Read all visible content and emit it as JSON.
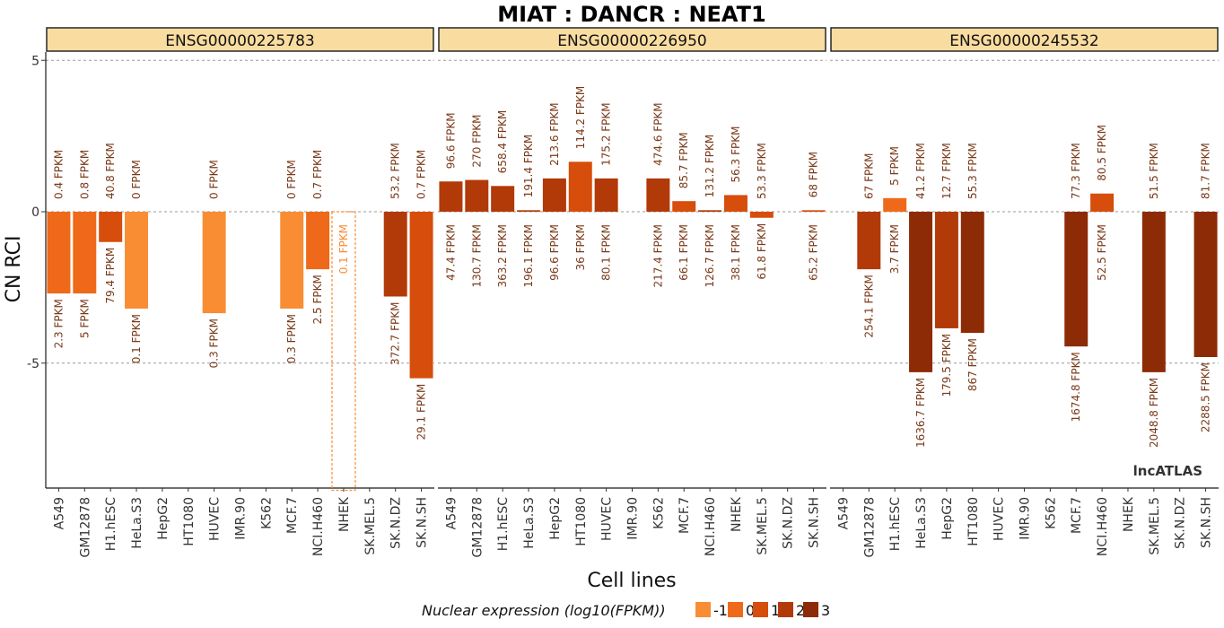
{
  "chart_data": {
    "type": "bar",
    "title": "MIAT : DANCR : NEAT1",
    "xlabel": "Cell lines",
    "ylabel": "CN RCI",
    "ylim": [
      -9.2,
      6
    ],
    "yticks": [
      5,
      0,
      -5
    ],
    "ytick_labels": [
      "5",
      "0",
      "-5"
    ],
    "categories": [
      "A549",
      "GM12878",
      "H1.hESC",
      "HeLa.S3",
      "HepG2",
      "HT1080",
      "HUVEC",
      "IMR.90",
      "K562",
      "MCF.7",
      "NCI.H460",
      "NHEK",
      "SK.MEL.5",
      "SK.N.DZ",
      "SK.N.SH"
    ],
    "grid": "dashed at 5, 0, -5",
    "legend": {
      "title": "Nuclear expression (log10(FPKM))",
      "placement": "bottom",
      "entries": [
        {
          "label": "-1",
          "color": "#f98d34"
        },
        {
          "label": "0",
          "color": "#ee6a1a"
        },
        {
          "label": "1",
          "color": "#d64d0c"
        },
        {
          "label": "2",
          "color": "#b23a08"
        },
        {
          "label": "3",
          "color": "#8c2b06"
        }
      ]
    },
    "watermark": "lncATLAS",
    "panels": [
      {
        "name": "ENSG00000225783",
        "bars": [
          {
            "cell": "A549",
            "value": -2.7,
            "top_label": "0.4 FPKM",
            "bottom_label": "2.3 FPKM",
            "color": "#ee6a1a"
          },
          {
            "cell": "GM12878",
            "value": -2.7,
            "top_label": "0.8 FPKM",
            "bottom_label": "5 FPKM",
            "color": "#ee6a1a"
          },
          {
            "cell": "H1.hESC",
            "value": -1.0,
            "top_label": "40.8 FPKM",
            "bottom_label": "79.4 FPKM",
            "color": "#d64d0c"
          },
          {
            "cell": "HeLa.S3",
            "value": -3.2,
            "top_label": "0 FPKM",
            "bottom_label": "0.1 FPKM",
            "color": "#f98d34"
          },
          {
            "cell": "HUVEC",
            "value": -3.35,
            "top_label": "0 FPKM",
            "bottom_label": "0.3 FPKM",
            "color": "#f98d34"
          },
          {
            "cell": "MCF.7",
            "value": -3.2,
            "top_label": "0 FPKM",
            "bottom_label": "0.3 FPKM",
            "color": "#f98d34"
          },
          {
            "cell": "NCI.H460",
            "value": -1.9,
            "top_label": "0.7 FPKM",
            "bottom_label": "2.5 FPKM",
            "color": "#ee6a1a"
          },
          {
            "cell": "NHEK",
            "value": -9.2,
            "top_label": "",
            "bottom_label": "0.1 FPKM",
            "color": "#f98d34",
            "outline": true
          },
          {
            "cell": "SK.N.DZ",
            "value": -2.8,
            "top_label": "53.2 FPKM",
            "bottom_label": "372.7 FPKM",
            "color": "#b23a08"
          },
          {
            "cell": "SK.N.SH",
            "value": -5.5,
            "top_label": "0.7 FPKM",
            "bottom_label": "29.1 FPKM",
            "color": "#d64d0c"
          }
        ]
      },
      {
        "name": "ENSG00000226950",
        "bars": [
          {
            "cell": "A549",
            "value": 1.0,
            "top_label": "96.6 FPKM",
            "bottom_label": "47.4 FPKM",
            "color": "#b23a08"
          },
          {
            "cell": "GM12878",
            "value": 1.05,
            "top_label": "270 FPKM",
            "bottom_label": "130.7 FPKM",
            "color": "#b23a08"
          },
          {
            "cell": "H1.hESC",
            "value": 0.85,
            "top_label": "658.4 FPKM",
            "bottom_label": "363.2 FPKM",
            "color": "#b23a08"
          },
          {
            "cell": "HeLa.S3",
            "value": 0.05,
            "top_label": "191.4 FPKM",
            "bottom_label": "196.1 FPKM",
            "color": "#b23a08"
          },
          {
            "cell": "HepG2",
            "value": 1.1,
            "top_label": "213.6 FPKM",
            "bottom_label": "96.6 FPKM",
            "color": "#b23a08"
          },
          {
            "cell": "HT1080",
            "value": 1.65,
            "top_label": "114.2 FPKM",
            "bottom_label": "36 FPKM",
            "color": "#d64d0c"
          },
          {
            "cell": "HUVEC",
            "value": 1.1,
            "top_label": "175.2 FPKM",
            "bottom_label": "80.1 FPKM",
            "color": "#b23a08"
          },
          {
            "cell": "K562",
            "value": 1.1,
            "top_label": "474.6 FPKM",
            "bottom_label": "217.4 FPKM",
            "color": "#b23a08"
          },
          {
            "cell": "MCF.7",
            "value": 0.35,
            "top_label": "85.7 FPKM",
            "bottom_label": "66.1 FPKM",
            "color": "#d64d0c"
          },
          {
            "cell": "NCI.H460",
            "value": 0.05,
            "top_label": "131.2 FPKM",
            "bottom_label": "126.7 FPKM",
            "color": "#b23a08"
          },
          {
            "cell": "NHEK",
            "value": 0.55,
            "top_label": "56.3 FPKM",
            "bottom_label": "38.1 FPKM",
            "color": "#d64d0c"
          },
          {
            "cell": "SK.MEL.5",
            "value": -0.2,
            "top_label": "53.3 FPKM",
            "bottom_label": "61.8 FPKM",
            "color": "#d64d0c"
          },
          {
            "cell": "SK.N.SH",
            "value": 0.05,
            "top_label": "68 FPKM",
            "bottom_label": "65.2 FPKM",
            "color": "#d64d0c"
          }
        ]
      },
      {
        "name": "ENSG00000245532",
        "bars": [
          {
            "cell": "GM12878",
            "value": -1.9,
            "top_label": "67 FPKM",
            "bottom_label": "254.1 FPKM",
            "color": "#b23a08"
          },
          {
            "cell": "H1.hESC",
            "value": 0.45,
            "top_label": "5 FPKM",
            "bottom_label": "3.7 FPKM",
            "color": "#ee6a1a"
          },
          {
            "cell": "HeLa.S3",
            "value": -5.3,
            "top_label": "41.2 FPKM",
            "bottom_label": "1636.7 FPKM",
            "color": "#8c2b06"
          },
          {
            "cell": "HepG2",
            "value": -3.85,
            "top_label": "12.7 FPKM",
            "bottom_label": "179.5 FPKM",
            "color": "#b23a08"
          },
          {
            "cell": "HT1080",
            "value": -4.0,
            "top_label": "55.3 FPKM",
            "bottom_label": "867 FPKM",
            "color": "#8c2b06"
          },
          {
            "cell": "MCF.7",
            "value": -4.45,
            "top_label": "77.3 FPKM",
            "bottom_label": "1674.8 FPKM",
            "color": "#8c2b06"
          },
          {
            "cell": "NCI.H460",
            "value": 0.6,
            "top_label": "80.5 FPKM",
            "bottom_label": "52.5 FPKM",
            "color": "#d64d0c"
          },
          {
            "cell": "SK.MEL.5",
            "value": -5.3,
            "top_label": "51.5 FPKM",
            "bottom_label": "2048.8 FPKM",
            "color": "#8c2b06"
          },
          {
            "cell": "SK.N.SH",
            "value": -4.8,
            "top_label": "81.7 FPKM",
            "bottom_label": "2288.5 FPKM",
            "color": "#8c2b06"
          }
        ]
      }
    ]
  }
}
